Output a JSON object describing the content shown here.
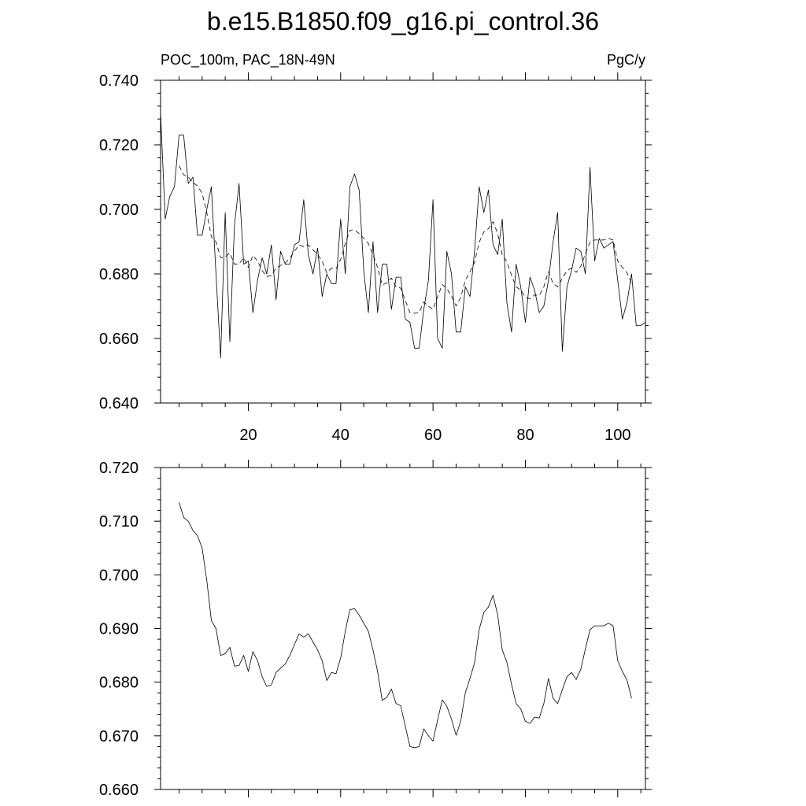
{
  "title": "b.e15.B1850.f09_g16.pi_control.36",
  "chart_data": [
    {
      "type": "line",
      "left_label": "POC_100m, PAC_18N-49N",
      "right_label": "PgC/y",
      "xlim": [
        1,
        106
      ],
      "ylim": [
        0.64,
        0.74
      ],
      "x_ticks": [
        20,
        40,
        60,
        80,
        100
      ],
      "x_tick_labels": [
        "20",
        "40",
        "60",
        "80",
        "100"
      ],
      "y_ticks": [
        0.64,
        0.66,
        0.68,
        0.7,
        0.72,
        0.74
      ],
      "y_tick_labels": [
        "0.640",
        "0.660",
        "0.680",
        "0.700",
        "0.720",
        "0.740"
      ],
      "grid": false,
      "series": [
        {
          "style": "solid",
          "x": [
            1,
            2,
            3,
            4,
            5,
            6,
            7,
            8,
            9,
            10,
            11,
            12,
            13,
            14,
            15,
            16,
            17,
            18,
            19,
            20,
            21,
            22,
            23,
            24,
            25,
            26,
            27,
            28,
            29,
            30,
            31,
            32,
            33,
            34,
            35,
            36,
            37,
            38,
            39,
            40,
            41,
            42,
            43,
            44,
            45,
            46,
            47,
            48,
            49,
            50,
            51,
            52,
            53,
            54,
            55,
            56,
            57,
            58,
            59,
            60,
            61,
            62,
            63,
            64,
            65,
            66,
            67,
            68,
            69,
            70,
            71,
            72,
            73,
            74,
            75,
            76,
            77,
            78,
            79,
            80,
            81,
            82,
            83,
            84,
            85,
            86,
            87,
            88,
            89,
            90,
            91,
            92,
            93,
            94,
            95,
            96,
            97,
            98,
            99,
            100,
            101,
            102,
            103,
            104,
            105,
            106
          ],
          "y": [
            0.73,
            0.697,
            0.704,
            0.707,
            0.723,
            0.723,
            0.708,
            0.71,
            0.692,
            0.692,
            0.7,
            0.707,
            0.68,
            0.654,
            0.699,
            0.659,
            0.695,
            0.708,
            0.683,
            0.684,
            0.668,
            0.678,
            0.685,
            0.68,
            0.689,
            0.672,
            0.687,
            0.683,
            0.683,
            0.689,
            0.69,
            0.703,
            0.686,
            0.68,
            0.688,
            0.673,
            0.68,
            0.677,
            0.677,
            0.697,
            0.68,
            0.707,
            0.711,
            0.706,
            0.681,
            0.668,
            0.69,
            0.668,
            0.683,
            0.683,
            0.669,
            0.679,
            0.679,
            0.666,
            0.665,
            0.657,
            0.657,
            0.669,
            0.678,
            0.703,
            0.66,
            0.657,
            0.687,
            0.68,
            0.662,
            0.662,
            0.676,
            0.673,
            0.687,
            0.707,
            0.699,
            0.706,
            0.689,
            0.686,
            0.697,
            0.671,
            0.662,
            0.683,
            0.676,
            0.665,
            0.679,
            0.675,
            0.668,
            0.67,
            0.678,
            0.69,
            0.699,
            0.656,
            0.676,
            0.681,
            0.688,
            0.687,
            0.68,
            0.713,
            0.684,
            0.691,
            0.688,
            0.689,
            0.69,
            0.678,
            0.666,
            0.671,
            0.68,
            0.664,
            0.664,
            0.665
          ]
        },
        {
          "style": "dashed",
          "x": [
            5,
            6,
            7,
            8,
            9,
            10,
            11,
            12,
            13,
            14,
            15,
            16,
            17,
            18,
            19,
            20,
            21,
            22,
            23,
            24,
            25,
            26,
            27,
            28,
            29,
            30,
            31,
            32,
            33,
            34,
            35,
            36,
            37,
            38,
            39,
            40,
            41,
            42,
            43,
            44,
            45,
            46,
            47,
            48,
            49,
            50,
            51,
            52,
            53,
            54,
            55,
            56,
            57,
            58,
            59,
            60,
            61,
            62,
            63,
            64,
            65,
            66,
            67,
            68,
            69,
            70,
            71,
            72,
            73,
            74,
            75,
            76,
            77,
            78,
            79,
            80,
            81,
            82,
            83,
            84,
            85,
            86,
            87,
            88,
            89,
            90,
            91,
            92,
            93,
            94,
            95,
            96,
            97,
            98,
            99,
            100,
            101,
            102,
            103
          ],
          "y": [
            0.7135,
            0.7107,
            0.71,
            0.7083,
            0.7073,
            0.705,
            0.699,
            0.6915,
            0.69,
            0.685,
            0.6853,
            0.6865,
            0.683,
            0.6831,
            0.685,
            0.682,
            0.6857,
            0.684,
            0.681,
            0.6792,
            0.6795,
            0.6818,
            0.6826,
            0.6834,
            0.685,
            0.687,
            0.689,
            0.6884,
            0.689,
            0.6875,
            0.686,
            0.684,
            0.6803,
            0.6818,
            0.6816,
            0.6845,
            0.6895,
            0.6935,
            0.6937,
            0.6925,
            0.691,
            0.6895,
            0.686,
            0.682,
            0.6766,
            0.6772,
            0.6787,
            0.676,
            0.6756,
            0.6718,
            0.668,
            0.6678,
            0.668,
            0.6713,
            0.67,
            0.669,
            0.673,
            0.6767,
            0.6755,
            0.6731,
            0.6701,
            0.6727,
            0.678,
            0.6807,
            0.6836,
            0.6898,
            0.693,
            0.694,
            0.6962,
            0.6925,
            0.686,
            0.6837,
            0.6796,
            0.676,
            0.675,
            0.6727,
            0.6723,
            0.6735,
            0.6733,
            0.676,
            0.6807,
            0.677,
            0.676,
            0.6786,
            0.681,
            0.6818,
            0.6805,
            0.6824,
            0.6862,
            0.6898,
            0.6905,
            0.6905,
            0.6905,
            0.691,
            0.6905,
            0.684,
            0.682,
            0.6804,
            0.677
          ]
        }
      ]
    },
    {
      "type": "line",
      "xlim": [
        1,
        106
      ],
      "ylim": [
        0.66,
        0.72
      ],
      "x_ticks": [
        20,
        40,
        60,
        80,
        100
      ],
      "y_ticks": [
        0.66,
        0.67,
        0.68,
        0.69,
        0.7,
        0.71,
        0.72
      ],
      "y_tick_labels": [
        "0.660",
        "0.670",
        "0.680",
        "0.690",
        "0.700",
        "0.710",
        "0.720"
      ],
      "grid": false,
      "series": [
        {
          "style": "solid",
          "x": [
            5,
            6,
            7,
            8,
            9,
            10,
            11,
            12,
            13,
            14,
            15,
            16,
            17,
            18,
            19,
            20,
            21,
            22,
            23,
            24,
            25,
            26,
            27,
            28,
            29,
            30,
            31,
            32,
            33,
            34,
            35,
            36,
            37,
            38,
            39,
            40,
            41,
            42,
            43,
            44,
            45,
            46,
            47,
            48,
            49,
            50,
            51,
            52,
            53,
            54,
            55,
            56,
            57,
            58,
            59,
            60,
            61,
            62,
            63,
            64,
            65,
            66,
            67,
            68,
            69,
            70,
            71,
            72,
            73,
            74,
            75,
            76,
            77,
            78,
            79,
            80,
            81,
            82,
            83,
            84,
            85,
            86,
            87,
            88,
            89,
            90,
            91,
            92,
            93,
            94,
            95,
            96,
            97,
            98,
            99,
            100,
            101,
            102,
            103
          ],
          "y": [
            0.7135,
            0.7107,
            0.71,
            0.7083,
            0.7073,
            0.705,
            0.699,
            0.6915,
            0.69,
            0.685,
            0.6853,
            0.6865,
            0.683,
            0.6831,
            0.685,
            0.682,
            0.6857,
            0.684,
            0.681,
            0.6792,
            0.6795,
            0.6818,
            0.6826,
            0.6834,
            0.685,
            0.687,
            0.689,
            0.6884,
            0.689,
            0.6875,
            0.686,
            0.684,
            0.6803,
            0.6818,
            0.6816,
            0.6845,
            0.6895,
            0.6935,
            0.6937,
            0.6925,
            0.691,
            0.6895,
            0.686,
            0.682,
            0.6766,
            0.6772,
            0.6787,
            0.676,
            0.6756,
            0.6718,
            0.668,
            0.6678,
            0.668,
            0.6713,
            0.67,
            0.669,
            0.673,
            0.6767,
            0.6755,
            0.6731,
            0.6701,
            0.6727,
            0.678,
            0.6807,
            0.6836,
            0.6898,
            0.693,
            0.694,
            0.6962,
            0.6925,
            0.686,
            0.6837,
            0.6796,
            0.676,
            0.675,
            0.6727,
            0.6723,
            0.6735,
            0.6733,
            0.676,
            0.6807,
            0.677,
            0.676,
            0.6786,
            0.681,
            0.6818,
            0.6805,
            0.6824,
            0.6862,
            0.6898,
            0.6905,
            0.6905,
            0.6905,
            0.691,
            0.6905,
            0.684,
            0.682,
            0.6804,
            0.677
          ]
        }
      ]
    }
  ]
}
